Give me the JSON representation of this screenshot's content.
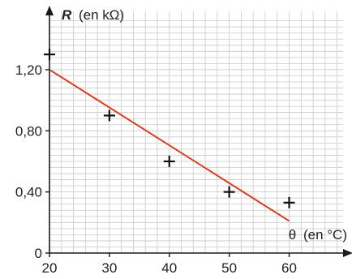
{
  "chart_data": {
    "type": "scatter",
    "xlabel": {
      "symbol": "θ",
      "unit": "(en °C)"
    },
    "ylabel": {
      "symbol": "R",
      "unit": "(en kΩ)"
    },
    "x_origin_label": "20",
    "x_ticks": [
      {
        "value": 20,
        "label": "20"
      },
      {
        "value": 30,
        "label": "30"
      },
      {
        "value": 40,
        "label": "40"
      },
      {
        "value": 50,
        "label": "50"
      },
      {
        "value": 60,
        "label": "60"
      }
    ],
    "y_ticks": [
      {
        "value": 0,
        "label": "0"
      },
      {
        "value": 0.4,
        "label": "0,40"
      },
      {
        "value": 0.8,
        "label": "0,80"
      },
      {
        "value": 1.2,
        "label": "1,20"
      }
    ],
    "xlim": [
      20,
      69
    ],
    "ylim": [
      0,
      1.55
    ],
    "grid": true,
    "points": [
      {
        "x": 20,
        "y": 1.3
      },
      {
        "x": 30,
        "y": 0.9
      },
      {
        "x": 40,
        "y": 0.6
      },
      {
        "x": 50,
        "y": 0.4
      },
      {
        "x": 60,
        "y": 0.33
      }
    ],
    "fit_line": {
      "x": [
        20,
        60
      ],
      "y": [
        1.2,
        0.21
      ]
    },
    "colors": {
      "grid": "#c9c9c9",
      "axis": "#1a1a1a",
      "fit": "#e03a1e",
      "marker": "#111111"
    }
  }
}
